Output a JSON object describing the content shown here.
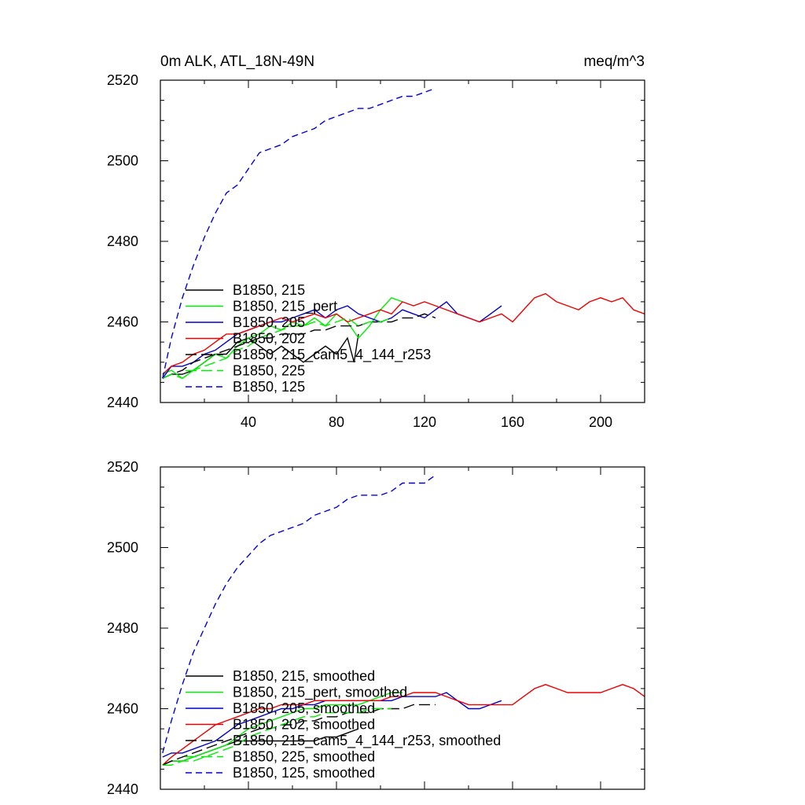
{
  "chart_data": [
    {
      "type": "line",
      "title_left": "0m ALK, ATL_18N-49N",
      "title_right": "meq/m^3",
      "xlim": [
        0,
        220
      ],
      "ylim": [
        2440,
        2520
      ],
      "x_ticks": [
        40,
        80,
        120,
        160,
        200
      ],
      "y_ticks": [
        2440,
        2460,
        2480,
        2500,
        2520
      ],
      "legend_position": "lower-left",
      "series": [
        {
          "name": "B1850, 215",
          "color": "#000000",
          "dash": "solid",
          "x": [
            1,
            5,
            10,
            15,
            20,
            25,
            30,
            35,
            40,
            45,
            50,
            55,
            60,
            65,
            70,
            75,
            80,
            85,
            88,
            90
          ],
          "y": [
            2446,
            2447,
            2447,
            2448,
            2450,
            2452,
            2452,
            2455,
            2456,
            2454,
            2452,
            2454,
            2452,
            2450,
            2452,
            2454,
            2452,
            2456,
            2450,
            2457
          ]
        },
        {
          "name": "B1850, 215_pert",
          "color": "#00ee00",
          "dash": "solid",
          "x": [
            1,
            5,
            10,
            15,
            20,
            25,
            30,
            35,
            40,
            45,
            50,
            55,
            60,
            65,
            70,
            75,
            80,
            85,
            90,
            95,
            100,
            105,
            110
          ],
          "y": [
            2447,
            2448,
            2446,
            2448,
            2450,
            2452,
            2451,
            2454,
            2456,
            2457,
            2459,
            2458,
            2460,
            2459,
            2461,
            2459,
            2462,
            2460,
            2456,
            2459,
            2463,
            2466,
            2465
          ]
        },
        {
          "name": "B1850, 205",
          "color": "#0000cc",
          "dash": "solid",
          "x": [
            1,
            5,
            10,
            15,
            20,
            25,
            30,
            35,
            40,
            45,
            50,
            55,
            60,
            65,
            70,
            75,
            80,
            85,
            90,
            95,
            100,
            105,
            110,
            115,
            120,
            125,
            130,
            135,
            140,
            145,
            150,
            155
          ],
          "y": [
            2446,
            2449,
            2449,
            2450,
            2452,
            2453,
            2455,
            2457,
            2458,
            2459,
            2460,
            2460,
            2461,
            2462,
            2463,
            2461,
            2463,
            2464,
            2462,
            2461,
            2460,
            2461,
            2463,
            2462,
            2461,
            2463,
            2465,
            2462,
            2461,
            2460,
            2462,
            2464
          ]
        },
        {
          "name": "B1850, 202",
          "color": "#ee0000",
          "dash": "solid",
          "x": [
            1,
            5,
            10,
            15,
            20,
            25,
            30,
            35,
            40,
            45,
            50,
            55,
            60,
            65,
            70,
            75,
            80,
            85,
            90,
            95,
            100,
            105,
            110,
            115,
            120,
            125,
            130,
            135,
            140,
            145,
            150,
            155,
            160,
            165,
            170,
            175,
            180,
            185,
            190,
            195,
            200,
            205,
            210,
            215,
            220
          ],
          "y": [
            2447,
            2449,
            2450,
            2452,
            2453,
            2455,
            2457,
            2457,
            2458,
            2459,
            2460,
            2461,
            2460,
            2461,
            2462,
            2461,
            2462,
            2460,
            2461,
            2462,
            2463,
            2462,
            2465,
            2464,
            2465,
            2464,
            2463,
            2462,
            2461,
            2460,
            2461,
            2462,
            2460,
            2463,
            2466,
            2467,
            2465,
            2464,
            2463,
            2465,
            2466,
            2465,
            2466,
            2463,
            2462
          ]
        },
        {
          "name": "B1850, 215_cam5_4_144_r253",
          "color": "#000000",
          "dash": "long",
          "x": [
            1,
            5,
            10,
            15,
            20,
            25,
            30,
            35,
            40,
            45,
            50,
            55,
            60,
            65,
            70,
            75,
            80,
            85,
            90,
            95,
            100,
            105,
            110,
            115,
            120,
            125
          ],
          "y": [
            2446,
            2447,
            2448,
            2450,
            2451,
            2452,
            2453,
            2454,
            2455,
            2456,
            2456,
            2457,
            2457,
            2457,
            2458,
            2458,
            2459,
            2459,
            2459,
            2460,
            2460,
            2460,
            2461,
            2461,
            2462,
            2461
          ]
        },
        {
          "name": "B1850, 225",
          "color": "#00ee00",
          "dash": "long",
          "x": [
            1,
            5,
            10,
            15,
            20,
            25,
            30,
            35,
            40,
            45,
            50,
            55,
            60,
            65,
            70,
            75,
            80,
            85,
            90,
            95,
            100,
            105
          ],
          "y": [
            2446,
            2447,
            2446,
            2448,
            2449,
            2450,
            2451,
            2453,
            2454,
            2456,
            2457,
            2458,
            2459,
            2459,
            2460,
            2459,
            2460,
            2461,
            2459,
            2460,
            2460,
            2461
          ]
        },
        {
          "name": "B1850, 125",
          "color": "#0000dd",
          "dash": "short",
          "x": [
            1,
            5,
            10,
            15,
            20,
            25,
            30,
            35,
            40,
            45,
            50,
            55,
            60,
            65,
            70,
            75,
            80,
            85,
            90,
            95,
            100,
            105,
            110,
            115,
            120,
            125
          ],
          "y": [
            2446,
            2456,
            2466,
            2474,
            2481,
            2487,
            2492,
            2494,
            2498,
            2502,
            2503,
            2504,
            2506,
            2507,
            2508,
            2510,
            2511,
            2512,
            2513,
            2513,
            2514,
            2515,
            2516,
            2516,
            2517,
            2518
          ]
        }
      ]
    },
    {
      "type": "line",
      "xlim": [
        0,
        220
      ],
      "ylim": [
        2440,
        2520
      ],
      "x_ticks": [
        40,
        80,
        120,
        160,
        200
      ],
      "x_tick_labels_shown": false,
      "y_ticks": [
        2440,
        2460,
        2480,
        2500,
        2520
      ],
      "legend_position": "lower-left",
      "series": [
        {
          "name": "B1850, 215, smoothed",
          "color": "#000000",
          "dash": "solid",
          "x": [
            1,
            5,
            10,
            15,
            20,
            25,
            30,
            35,
            40,
            45,
            50,
            55,
            60,
            65,
            70,
            75,
            80,
            85,
            90
          ],
          "y": [
            2446,
            2447,
            2447,
            2448,
            2449,
            2450,
            2451,
            2452,
            2452,
            2452,
            2452,
            2452,
            2452,
            2452,
            2452,
            2453,
            2453,
            2454,
            2455
          ]
        },
        {
          "name": "B1850, 215_pert, smoothed",
          "color": "#00ee00",
          "dash": "solid",
          "x": [
            1,
            5,
            10,
            15,
            20,
            25,
            30,
            35,
            40,
            45,
            50,
            55,
            60,
            65,
            70,
            75,
            80,
            85,
            90,
            95,
            100,
            105,
            110
          ],
          "y": [
            2446,
            2447,
            2447,
            2448,
            2449,
            2450,
            2451,
            2453,
            2455,
            2456,
            2457,
            2458,
            2459,
            2460,
            2460,
            2461,
            2461,
            2461,
            2461,
            2462,
            2463,
            2464,
            2464
          ]
        },
        {
          "name": "B1850, 205, smoothed",
          "color": "#0000cc",
          "dash": "solid",
          "x": [
            1,
            5,
            10,
            15,
            20,
            25,
            30,
            35,
            40,
            45,
            50,
            55,
            60,
            65,
            70,
            75,
            80,
            85,
            90,
            95,
            100,
            105,
            110,
            115,
            120,
            125,
            130,
            135,
            140,
            145,
            150,
            155
          ],
          "y": [
            2448,
            2449,
            2449,
            2450,
            2451,
            2452,
            2454,
            2456,
            2457,
            2458,
            2459,
            2460,
            2460,
            2461,
            2461,
            2462,
            2462,
            2462,
            2462,
            2462,
            2462,
            2462,
            2463,
            2463,
            2463,
            2463,
            2464,
            2462,
            2460,
            2460,
            2461,
            2462
          ]
        },
        {
          "name": "B1850, 202, smoothed",
          "color": "#ee0000",
          "dash": "solid",
          "x": [
            1,
            5,
            10,
            15,
            20,
            25,
            30,
            35,
            40,
            45,
            50,
            55,
            60,
            65,
            70,
            75,
            80,
            85,
            90,
            95,
            100,
            105,
            110,
            115,
            120,
            125,
            130,
            135,
            140,
            145,
            150,
            155,
            160,
            165,
            170,
            175,
            180,
            185,
            190,
            195,
            200,
            205,
            210,
            215,
            220
          ],
          "y": [
            2446,
            2448,
            2450,
            2452,
            2454,
            2456,
            2457,
            2458,
            2459,
            2460,
            2460,
            2461,
            2461,
            2461,
            2462,
            2462,
            2462,
            2462,
            2462,
            2462,
            2462,
            2463,
            2463,
            2464,
            2464,
            2464,
            2463,
            2462,
            2461,
            2461,
            2461,
            2461,
            2461,
            2463,
            2465,
            2466,
            2465,
            2464,
            2464,
            2464,
            2464,
            2465,
            2466,
            2465,
            2463
          ]
        },
        {
          "name": "B1850, 215_cam5_4_144_r253, smoothed",
          "color": "#000000",
          "dash": "long",
          "x": [
            1,
            5,
            10,
            15,
            20,
            25,
            30,
            35,
            40,
            45,
            50,
            55,
            60,
            65,
            70,
            75,
            80,
            85,
            90,
            95,
            100,
            105,
            110,
            115,
            120,
            125
          ],
          "y": [
            2446,
            2447,
            2448,
            2449,
            2450,
            2451,
            2452,
            2453,
            2454,
            2455,
            2455,
            2456,
            2456,
            2457,
            2457,
            2458,
            2458,
            2459,
            2459,
            2459,
            2460,
            2460,
            2460,
            2461,
            2461,
            2461
          ]
        },
        {
          "name": "B1850, 225, smoothed",
          "color": "#00ee00",
          "dash": "long",
          "x": [
            1,
            5,
            10,
            15,
            20,
            25,
            30,
            35,
            40,
            45,
            50,
            55,
            60,
            65,
            70,
            75,
            80,
            85,
            90,
            95,
            100,
            105
          ],
          "y": [
            2446,
            2446,
            2447,
            2447,
            2448,
            2449,
            2450,
            2451,
            2453,
            2454,
            2455,
            2456,
            2457,
            2458,
            2458,
            2459,
            2459,
            2459,
            2459,
            2460,
            2460,
            2460
          ]
        },
        {
          "name": "B1850, 125, smoothed",
          "color": "#0000dd",
          "dash": "short",
          "x": [
            1,
            5,
            10,
            15,
            20,
            25,
            30,
            35,
            40,
            45,
            50,
            55,
            60,
            65,
            70,
            75,
            80,
            85,
            90,
            95,
            100,
            105,
            110,
            115,
            120,
            125
          ],
          "y": [
            2449,
            2457,
            2466,
            2474,
            2480,
            2486,
            2491,
            2495,
            2498,
            2501,
            2503,
            2504,
            2505,
            2506,
            2508,
            2509,
            2510,
            2512,
            2513,
            2513,
            2513,
            2514,
            2516,
            2516,
            2516,
            2518
          ]
        }
      ]
    }
  ]
}
